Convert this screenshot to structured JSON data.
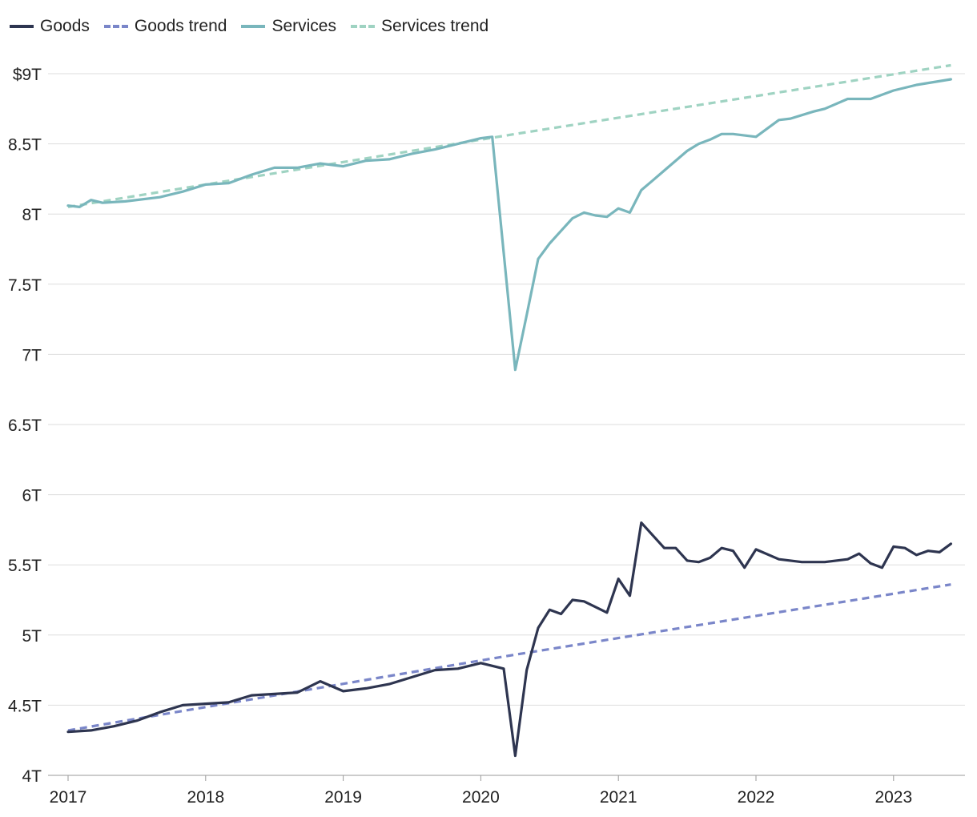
{
  "chart_data": {
    "type": "line",
    "title": "",
    "xlabel": "",
    "ylabel": "",
    "x_ticks": [
      "2017",
      "2018",
      "2019",
      "2020",
      "2021",
      "2022",
      "2023"
    ],
    "y_ticks": [
      "$9T",
      "8.5T",
      "8T",
      "7.5T",
      "7T",
      "6.5T",
      "6T",
      "5.5T",
      "5T",
      "4.5T",
      "4T"
    ],
    "y_tick_values": [
      9,
      8.5,
      8,
      7.5,
      7,
      6.5,
      6,
      5.5,
      5,
      4.5,
      4
    ],
    "ylim": [
      4,
      9
    ],
    "xlim": [
      "2017-01",
      "2023-06"
    ],
    "y_unit": "trillions of dollars",
    "grid": true,
    "legend_position": "top-left",
    "series": [
      {
        "name": "Goods",
        "color": "#2e3550",
        "dash": false,
        "x": [
          "2017-01",
          "2017-03",
          "2017-05",
          "2017-07",
          "2017-09",
          "2017-11",
          "2018-01",
          "2018-03",
          "2018-05",
          "2018-07",
          "2018-09",
          "2018-11",
          "2019-01",
          "2019-03",
          "2019-05",
          "2019-07",
          "2019-09",
          "2019-11",
          "2020-01",
          "2020-02",
          "2020-03",
          "2020-04",
          "2020-05",
          "2020-06",
          "2020-07",
          "2020-08",
          "2020-09",
          "2020-10",
          "2020-12",
          "2021-01",
          "2021-02",
          "2021-03",
          "2021-04",
          "2021-05",
          "2021-06",
          "2021-07",
          "2021-08",
          "2021-09",
          "2021-10",
          "2021-11",
          "2021-12",
          "2022-01",
          "2022-03",
          "2022-05",
          "2022-07",
          "2022-09",
          "2022-10",
          "2022-11",
          "2022-12",
          "2023-01",
          "2023-02",
          "2023-03",
          "2023-04",
          "2023-05",
          "2023-06"
        ],
        "y": [
          4.31,
          4.32,
          4.35,
          4.39,
          4.45,
          4.5,
          4.51,
          4.52,
          4.57,
          4.58,
          4.59,
          4.67,
          4.6,
          4.62,
          4.65,
          4.7,
          4.75,
          4.76,
          4.8,
          4.78,
          4.76,
          4.14,
          4.75,
          5.05,
          5.18,
          5.15,
          5.25,
          5.24,
          5.16,
          5.4,
          5.28,
          5.8,
          5.71,
          5.62,
          5.62,
          5.53,
          5.52,
          5.55,
          5.62,
          5.6,
          5.48,
          5.61,
          5.54,
          5.52,
          5.52,
          5.54,
          5.58,
          5.51,
          5.48,
          5.63,
          5.62,
          5.57,
          5.6,
          5.59,
          5.65
        ]
      },
      {
        "name": "Goods trend",
        "color": "#7a86c9",
        "dash": true,
        "x": [
          "2017-01",
          "2020-04",
          "2023-06"
        ],
        "y": [
          4.32,
          4.86,
          5.36
        ]
      },
      {
        "name": "Services",
        "color": "#79b6bc",
        "dash": false,
        "x": [
          "2017-01",
          "2017-02",
          "2017-03",
          "2017-04",
          "2017-06",
          "2017-09",
          "2017-11",
          "2018-01",
          "2018-03",
          "2018-05",
          "2018-07",
          "2018-09",
          "2018-11",
          "2019-01",
          "2019-03",
          "2019-05",
          "2019-07",
          "2019-09",
          "2019-11",
          "2020-01",
          "2020-02",
          "2020-04",
          "2020-05",
          "2020-06",
          "2020-07",
          "2020-08",
          "2020-09",
          "2020-10",
          "2020-11",
          "2020-12",
          "2021-01",
          "2021-02",
          "2021-03",
          "2021-04",
          "2021-05",
          "2021-06",
          "2021-07",
          "2021-08",
          "2021-09",
          "2021-10",
          "2021-11",
          "2021-12",
          "2022-01",
          "2022-02",
          "2022-03",
          "2022-04",
          "2022-06",
          "2022-07",
          "2022-09",
          "2022-11",
          "2023-01",
          "2023-03",
          "2023-06"
        ],
        "y": [
          8.06,
          8.05,
          8.1,
          8.08,
          8.09,
          8.12,
          8.16,
          8.21,
          8.22,
          8.28,
          8.33,
          8.33,
          8.36,
          8.34,
          8.38,
          8.39,
          8.43,
          8.46,
          8.5,
          8.54,
          8.55,
          6.89,
          7.28,
          7.68,
          7.79,
          7.88,
          7.97,
          8.01,
          7.99,
          7.98,
          8.04,
          8.01,
          8.17,
          8.24,
          8.31,
          8.38,
          8.45,
          8.5,
          8.53,
          8.57,
          8.57,
          8.56,
          8.55,
          8.61,
          8.67,
          8.68,
          8.73,
          8.75,
          8.82,
          8.82,
          8.88,
          8.92,
          8.96
        ]
      },
      {
        "name": "Services trend",
        "color": "#9fd3c2",
        "dash": true,
        "x": [
          "2017-01",
          "2020-04",
          "2023-06"
        ],
        "y": [
          8.05,
          8.57,
          9.06
        ]
      }
    ]
  }
}
